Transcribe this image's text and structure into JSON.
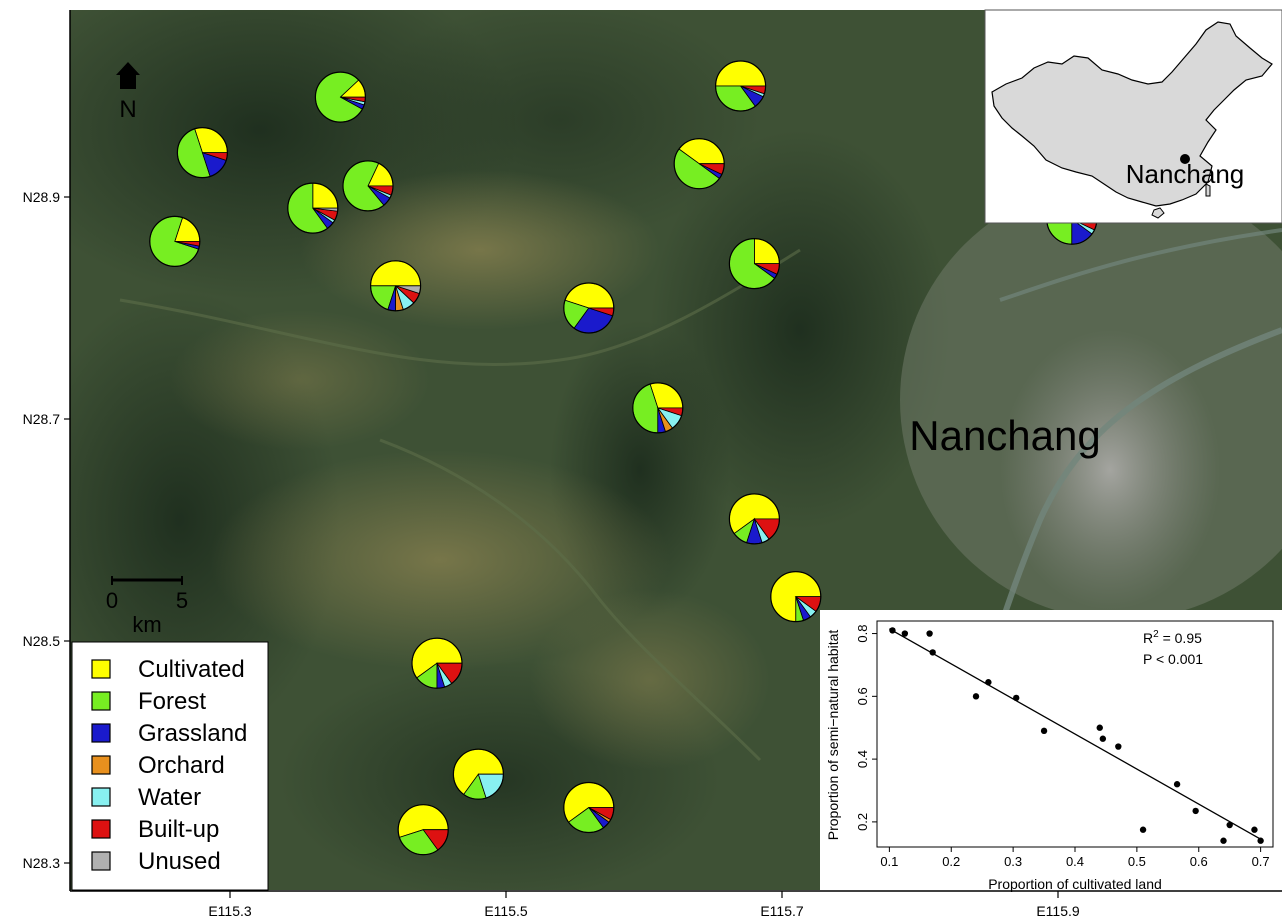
{
  "map": {
    "city_label": "Nanchang",
    "north_label": "N",
    "scale": {
      "start": "0",
      "end": "5",
      "unit": "km"
    },
    "lat_ticks": [
      {
        "label": "N28.9",
        "value": 28.9
      },
      {
        "label": "N28.7",
        "value": 28.7
      },
      {
        "label": "N28.5",
        "value": 28.5
      },
      {
        "label": "N28.3",
        "value": 28.3
      }
    ],
    "lon_ticks": [
      {
        "label": "E115.3",
        "value": 115.3
      },
      {
        "label": "E115.5",
        "value": 115.5
      },
      {
        "label": "E115.7",
        "value": 115.7
      },
      {
        "label": "E115.9",
        "value": 115.9
      }
    ],
    "lon_range": [
      115.1,
      116.1
    ],
    "lat_range": [
      28.27,
      29.07
    ]
  },
  "inset_map": {
    "label": "Nanchang",
    "country_fill": "#d9d9d9"
  },
  "legend": {
    "items": [
      {
        "label": "Cultivated",
        "color": "#ffff00"
      },
      {
        "label": "Forest",
        "color": "#77ee22"
      },
      {
        "label": "Grassland",
        "color": "#1a1acc"
      },
      {
        "label": "Orchard",
        "color": "#e8901e"
      },
      {
        "label": "Water",
        "color": "#88f0f0"
      },
      {
        "label": "Built-up",
        "color": "#dd1111"
      },
      {
        "label": "Unused",
        "color": "#b0b0b0"
      }
    ]
  },
  "sites": [
    {
      "lon": 115.28,
      "lat": 28.94,
      "values": [
        0.3,
        0.5,
        0.15,
        0,
        0,
        0.05,
        0
      ]
    },
    {
      "lon": 115.38,
      "lat": 28.99,
      "values": [
        0.12,
        0.8,
        0.03,
        0,
        0.02,
        0.03,
        0
      ]
    },
    {
      "lon": 115.36,
      "lat": 28.89,
      "values": [
        0.25,
        0.6,
        0.05,
        0,
        0.02,
        0.06,
        0.02
      ]
    },
    {
      "lon": 115.26,
      "lat": 28.86,
      "values": [
        0.2,
        0.75,
        0.02,
        0,
        0,
        0.03,
        0
      ]
    },
    {
      "lon": 115.4,
      "lat": 28.91,
      "values": [
        0.18,
        0.68,
        0.06,
        0,
        0.02,
        0.06,
        0
      ]
    },
    {
      "lon": 115.42,
      "lat": 28.82,
      "values": [
        0.5,
        0.2,
        0.05,
        0.05,
        0.08,
        0.07,
        0.05
      ]
    },
    {
      "lon": 115.56,
      "lat": 28.8,
      "values": [
        0.45,
        0.2,
        0.3,
        0,
        0,
        0.05,
        0
      ]
    },
    {
      "lon": 115.64,
      "lat": 28.93,
      "values": [
        0.4,
        0.5,
        0.03,
        0,
        0,
        0.07,
        0
      ]
    },
    {
      "lon": 115.67,
      "lat": 29.0,
      "values": [
        0.5,
        0.35,
        0.08,
        0,
        0.02,
        0.05,
        0
      ]
    },
    {
      "lon": 115.68,
      "lat": 28.84,
      "values": [
        0.25,
        0.65,
        0.03,
        0,
        0,
        0.07,
        0
      ]
    },
    {
      "lon": 115.91,
      "lat": 28.88,
      "values": [
        0.15,
        0.6,
        0.15,
        0,
        0.03,
        0.07,
        0
      ]
    },
    {
      "lon": 115.61,
      "lat": 28.71,
      "values": [
        0.3,
        0.45,
        0.05,
        0.05,
        0.1,
        0.05,
        0
      ]
    },
    {
      "lon": 115.68,
      "lat": 28.61,
      "values": [
        0.6,
        0.1,
        0.1,
        0,
        0.05,
        0.15,
        0
      ]
    },
    {
      "lon": 115.71,
      "lat": 28.54,
      "values": [
        0.75,
        0.05,
        0.05,
        0,
        0.05,
        0.1,
        0
      ]
    },
    {
      "lon": 115.45,
      "lat": 28.48,
      "values": [
        0.6,
        0.15,
        0.05,
        0,
        0.05,
        0.15,
        0
      ]
    },
    {
      "lon": 115.48,
      "lat": 28.38,
      "values": [
        0.65,
        0.15,
        0,
        0,
        0.2,
        0,
        0
      ]
    },
    {
      "lon": 115.44,
      "lat": 28.33,
      "values": [
        0.55,
        0.3,
        0,
        0,
        0,
        0.15,
        0
      ]
    },
    {
      "lon": 115.56,
      "lat": 28.35,
      "values": [
        0.6,
        0.25,
        0.05,
        0.02,
        0,
        0.08,
        0
      ]
    }
  ],
  "chart_data": {
    "type": "scatter",
    "xlabel": "Proportion of cultivated land",
    "ylabel": "Proportion of semi−natural habitat",
    "xlim": [
      0.08,
      0.72
    ],
    "ylim": [
      0.12,
      0.84
    ],
    "xticks": [
      "0.1",
      "0.2",
      "0.3",
      "0.4",
      "0.5",
      "0.6",
      "0.7"
    ],
    "yticks": [
      "0.2",
      "0.4",
      "0.6",
      "0.8"
    ],
    "annotation_r2": "R",
    "annotation_r2_sup": "2",
    "annotation_r2_value": " = 0.95",
    "annotation_p": "P < 0.001",
    "points": [
      [
        0.105,
        0.81
      ],
      [
        0.125,
        0.8
      ],
      [
        0.165,
        0.8
      ],
      [
        0.17,
        0.74
      ],
      [
        0.24,
        0.6
      ],
      [
        0.26,
        0.645
      ],
      [
        0.305,
        0.595
      ],
      [
        0.35,
        0.49
      ],
      [
        0.44,
        0.5
      ],
      [
        0.445,
        0.465
      ],
      [
        0.47,
        0.44
      ],
      [
        0.51,
        0.175
      ],
      [
        0.565,
        0.32
      ],
      [
        0.595,
        0.235
      ],
      [
        0.64,
        0.14
      ],
      [
        0.65,
        0.19
      ],
      [
        0.69,
        0.175
      ],
      [
        0.7,
        0.14
      ]
    ],
    "fit_line": {
      "x": [
        0.1,
        0.7
      ],
      "y": [
        0.815,
        0.145
      ]
    },
    "grid": false
  }
}
